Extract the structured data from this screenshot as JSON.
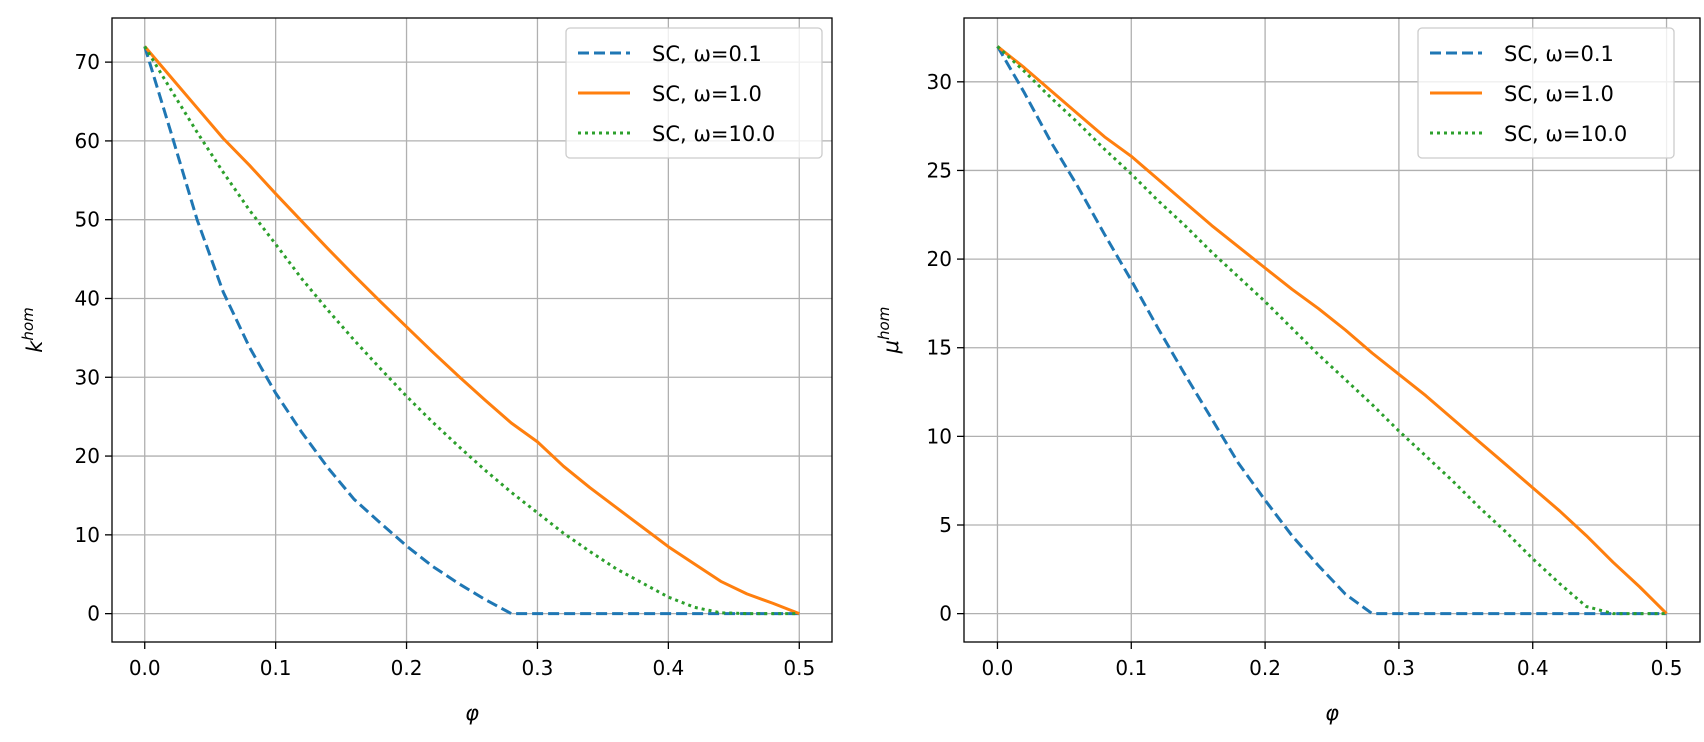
{
  "chart_data": [
    {
      "type": "line",
      "xlabel": "φ",
      "ylabel_base": "k",
      "ylabel_sup": "hom",
      "xlim": [
        -0.025,
        0.525
      ],
      "ylim": [
        -3.6,
        75.6
      ],
      "xticks": [
        0.0,
        0.1,
        0.2,
        0.3,
        0.4,
        0.5
      ],
      "xtick_labels": [
        "0.0",
        "0.1",
        "0.2",
        "0.3",
        "0.4",
        "0.5"
      ],
      "yticks": [
        0,
        10,
        20,
        30,
        40,
        50,
        60,
        70
      ],
      "ytick_labels": [
        "0",
        "10",
        "20",
        "30",
        "40",
        "50",
        "60",
        "70"
      ],
      "grid": true,
      "legend_position": "top-right",
      "x": [
        0.0,
        0.02,
        0.04,
        0.06,
        0.08,
        0.1,
        0.12,
        0.14,
        0.16,
        0.18,
        0.2,
        0.22,
        0.24,
        0.26,
        0.28,
        0.3,
        0.32,
        0.34,
        0.36,
        0.38,
        0.4,
        0.42,
        0.44,
        0.46,
        0.48,
        0.5
      ],
      "series": [
        {
          "name": "SC, ω=0.1",
          "color": "#1f77b4",
          "style": "dashed",
          "values": [
            72.0,
            61.1,
            50.0,
            40.8,
            33.8,
            28.0,
            23.0,
            18.5,
            14.5,
            11.5,
            8.6,
            6.0,
            3.8,
            1.8,
            0.0,
            0.0,
            0.0,
            0.0,
            0.0,
            0.0,
            0.0,
            0.0,
            0.0,
            0.0,
            0.0,
            0.0
          ]
        },
        {
          "name": "SC, ω=1.0",
          "color": "#ff7f0e",
          "style": "solid",
          "values": [
            72.0,
            68.1,
            64.2,
            60.3,
            56.9,
            53.3,
            49.8,
            46.3,
            42.9,
            39.6,
            36.4,
            33.2,
            30.1,
            27.1,
            24.2,
            21.8,
            18.7,
            16.0,
            13.5,
            11.0,
            8.5,
            6.3,
            4.1,
            2.5,
            1.3,
            0.0
          ]
        },
        {
          "name": "SC, ω=10.0",
          "color": "#2ca02c",
          "style": "dotted",
          "values": [
            72.0,
            66.5,
            61.1,
            56.0,
            51.2,
            46.9,
            42.5,
            38.5,
            34.7,
            31.1,
            27.6,
            24.3,
            21.2,
            18.2,
            15.4,
            12.8,
            10.2,
            7.9,
            5.7,
            3.9,
            2.1,
            0.8,
            0.1,
            0.0,
            0.0,
            0.0
          ]
        }
      ]
    },
    {
      "type": "line",
      "xlabel": "φ",
      "ylabel_base": "μ",
      "ylabel_sup": "hom",
      "xlim": [
        -0.025,
        0.525
      ],
      "ylim": [
        -1.6,
        33.6
      ],
      "xticks": [
        0.0,
        0.1,
        0.2,
        0.3,
        0.4,
        0.5
      ],
      "xtick_labels": [
        "0.0",
        "0.1",
        "0.2",
        "0.3",
        "0.4",
        "0.5"
      ],
      "yticks": [
        0,
        5,
        10,
        15,
        20,
        25,
        30
      ],
      "ytick_labels": [
        "0",
        "5",
        "10",
        "15",
        "20",
        "25",
        "30"
      ],
      "grid": true,
      "legend_position": "top-right",
      "x": [
        0.0,
        0.02,
        0.04,
        0.06,
        0.08,
        0.1,
        0.12,
        0.14,
        0.16,
        0.18,
        0.2,
        0.22,
        0.24,
        0.26,
        0.28,
        0.3,
        0.32,
        0.34,
        0.36,
        0.38,
        0.4,
        0.42,
        0.44,
        0.46,
        0.48,
        0.5
      ],
      "series": [
        {
          "name": "SC, ω=0.1",
          "color": "#1f77b4",
          "style": "dashed",
          "values": [
            32.0,
            29.4,
            26.6,
            24.1,
            21.4,
            18.8,
            16.1,
            13.5,
            11.0,
            8.5,
            6.4,
            4.4,
            2.7,
            1.1,
            0.0,
            0.0,
            0.0,
            0.0,
            0.0,
            0.0,
            0.0,
            0.0,
            0.0,
            0.0,
            0.0,
            0.0
          ]
        },
        {
          "name": "SC, ω=1.0",
          "color": "#ff7f0e",
          "style": "solid",
          "values": [
            32.0,
            30.8,
            29.5,
            28.2,
            26.9,
            25.8,
            24.5,
            23.2,
            21.9,
            20.7,
            19.5,
            18.3,
            17.2,
            16.0,
            14.7,
            13.5,
            12.3,
            11.0,
            9.7,
            8.4,
            7.1,
            5.8,
            4.4,
            2.9,
            1.5,
            0.0
          ]
        },
        {
          "name": "SC, ω=10.0",
          "color": "#2ca02c",
          "style": "dotted",
          "values": [
            32.0,
            30.6,
            29.1,
            27.7,
            26.2,
            24.8,
            23.3,
            21.9,
            20.4,
            19.0,
            17.6,
            16.1,
            14.6,
            13.2,
            11.8,
            10.3,
            8.9,
            7.5,
            6.0,
            4.6,
            3.1,
            1.7,
            0.4,
            0.0,
            0.0,
            0.0
          ]
        }
      ]
    }
  ]
}
